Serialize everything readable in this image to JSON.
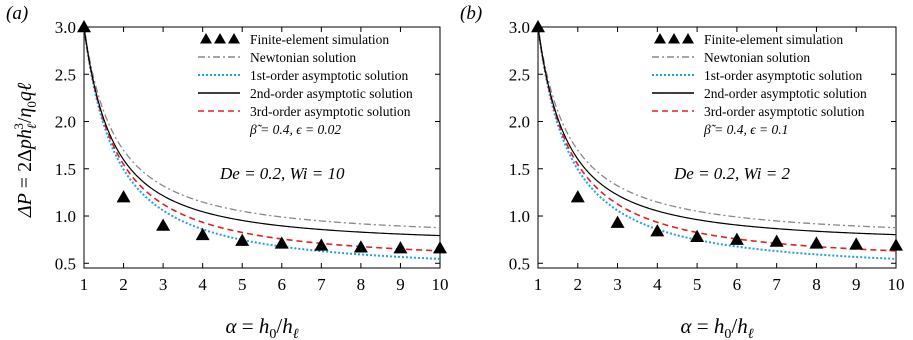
{
  "figure": {
    "ylabel_parts": [
      "ΔP",
      " = 2Δ",
      "p",
      "h",
      "ℓ",
      "3",
      "/",
      "η",
      "0",
      "q",
      "ℓ"
    ],
    "xlabel_parts": [
      "α",
      " = ",
      "h",
      "0",
      "/",
      "h",
      "ℓ"
    ]
  },
  "chart_data": [
    {
      "type": "line",
      "panel_label": "(a)",
      "xlim": [
        1,
        10
      ],
      "ylim": [
        0.45,
        3.0
      ],
      "x_ticks": [
        1,
        2,
        3,
        4,
        5,
        6,
        7,
        8,
        9,
        10
      ],
      "y_ticks": [
        0.5,
        1.0,
        1.5,
        2.0,
        2.5,
        3.0
      ],
      "y_tick_labels": [
        "0.5",
        "1.0",
        "1.5",
        "2.0",
        "2.5",
        "3.0"
      ],
      "legend": [
        {
          "label": "Finite-element simulation",
          "style": "markers",
          "color": "#000000"
        },
        {
          "label": "Newtonian solution",
          "style": "dashdot",
          "color": "#888888"
        },
        {
          "label": "1st-order asymptotic solution",
          "style": "dotted",
          "color": "#1fa3dc"
        },
        {
          "label": "2nd-order asymptotic solution",
          "style": "solid",
          "color": "#000000"
        },
        {
          "label": "3rd-order asymptotic solution",
          "style": "dashed",
          "color": "#e02020"
        }
      ],
      "param_text": "β̃ = 0.4, ϵ = 0.02",
      "condition_text": "De = 0.2, Wi = 10",
      "markers": {
        "x": [
          1,
          2,
          3,
          4,
          5,
          6,
          7,
          8,
          9,
          10
        ],
        "y": [
          3.0,
          1.2,
          0.9,
          0.8,
          0.74,
          0.71,
          0.69,
          0.67,
          0.66,
          0.66
        ]
      },
      "curves": {
        "newtonian_inf": 0.75,
        "first_inf": 0.4,
        "second_inf": 0.69,
        "third_inf": 0.49
      }
    },
    {
      "type": "line",
      "panel_label": "(b)",
      "xlim": [
        1,
        10
      ],
      "ylim": [
        0.45,
        3.0
      ],
      "x_ticks": [
        1,
        2,
        3,
        4,
        5,
        6,
        7,
        8,
        9,
        10
      ],
      "y_ticks": [
        0.5,
        1.0,
        1.5,
        2.0,
        2.5,
        3.0
      ],
      "y_tick_labels": [
        "0.5",
        "1.0",
        "1.5",
        "2.0",
        "2.5",
        "3.0"
      ],
      "legend": [
        {
          "label": "Finite-element simulation",
          "style": "markers",
          "color": "#000000"
        },
        {
          "label": "Newtonian solution",
          "style": "dashdot",
          "color": "#888888"
        },
        {
          "label": "1st-order asymptotic solution",
          "style": "dotted",
          "color": "#1fa3dc"
        },
        {
          "label": "2nd-order asymptotic solution",
          "style": "solid",
          "color": "#000000"
        },
        {
          "label": "3rd-order asymptotic solution",
          "style": "dashed",
          "color": "#e02020"
        }
      ],
      "param_text": "β̃ = 0.4, ϵ = 0.1",
      "condition_text": "De = 0.2, Wi = 2",
      "markers": {
        "x": [
          1,
          2,
          3,
          4,
          5,
          6,
          7,
          8,
          9,
          10
        ],
        "y": [
          3.0,
          1.2,
          0.93,
          0.84,
          0.78,
          0.75,
          0.73,
          0.71,
          0.7,
          0.69
        ]
      },
      "curves": {
        "newtonian_inf": 0.75,
        "first_inf": 0.4,
        "second_inf": 0.7,
        "third_inf": 0.49
      }
    }
  ]
}
